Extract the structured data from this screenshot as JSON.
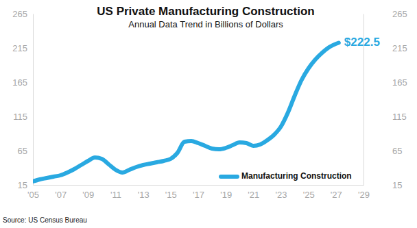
{
  "chart_data": {
    "type": "line",
    "title": "US Private Manufacturing Construction",
    "subtitle": "Annual Data Trend in Billions of Dollars",
    "source": "Source: US Census Bureau",
    "x": [
      2005,
      2005.5,
      2006,
      2006.5,
      2007,
      2007.5,
      2008,
      2008.5,
      2009,
      2009.5,
      2010,
      2010.5,
      2011,
      2011.5,
      2012,
      2012.5,
      2013,
      2013.5,
      2014,
      2014.5,
      2015,
      2015.5,
      2016,
      2016.5,
      2017,
      2017.5,
      2018,
      2018.5,
      2019,
      2019.5,
      2020,
      2020.5,
      2021,
      2021.5,
      2022,
      2022.5,
      2023,
      2023.5,
      2024,
      2024.5,
      2025,
      2025.5,
      2026,
      2026.5,
      2027.2
    ],
    "series": [
      {
        "name": "Manufacturing Construction",
        "color": "#29a9e1",
        "values": [
          20,
          23,
          25,
          27,
          29,
          33,
          38,
          44,
          50,
          55,
          53,
          45,
          37,
          33,
          37,
          41,
          44,
          46,
          48,
          50,
          53,
          62,
          78,
          79,
          76,
          72,
          68,
          67,
          69,
          73,
          77,
          76,
          72,
          74,
          80,
          88,
          100,
          120,
          145,
          168,
          185,
          198,
          208,
          216,
          222.5
        ],
        "value_labels": [
          null,
          null,
          null,
          null,
          null,
          null,
          null,
          null,
          null,
          null,
          null,
          null,
          null,
          null,
          null,
          null,
          null,
          null,
          null,
          null,
          null,
          null,
          null,
          null,
          null,
          null,
          null,
          null,
          null,
          null,
          null,
          null,
          null,
          null,
          null,
          null,
          null,
          null,
          null,
          null,
          null,
          null,
          null,
          null,
          "$222.5"
        ]
      }
    ],
    "xlim": [
      2005,
      2029
    ],
    "xticks": [
      {
        "value": 2005,
        "label": "'05"
      },
      {
        "value": 2007,
        "label": "'07"
      },
      {
        "value": 2009,
        "label": "'09"
      },
      {
        "value": 2011,
        "label": "'11"
      },
      {
        "value": 2013,
        "label": "'13"
      },
      {
        "value": 2015,
        "label": "'15"
      },
      {
        "value": 2017,
        "label": "'17"
      },
      {
        "value": 2019,
        "label": "'19"
      },
      {
        "value": 2021,
        "label": "'21"
      },
      {
        "value": 2023,
        "label": "'23"
      },
      {
        "value": 2025,
        "label": "'25"
      },
      {
        "value": 2027,
        "label": "'27"
      },
      {
        "value": 2029,
        "label": "'29"
      }
    ],
    "ylim": [
      15,
      265
    ],
    "yticks": [
      15,
      65,
      115,
      165,
      215,
      265
    ],
    "grid": false,
    "legend": "lower right",
    "data_labels": true
  }
}
